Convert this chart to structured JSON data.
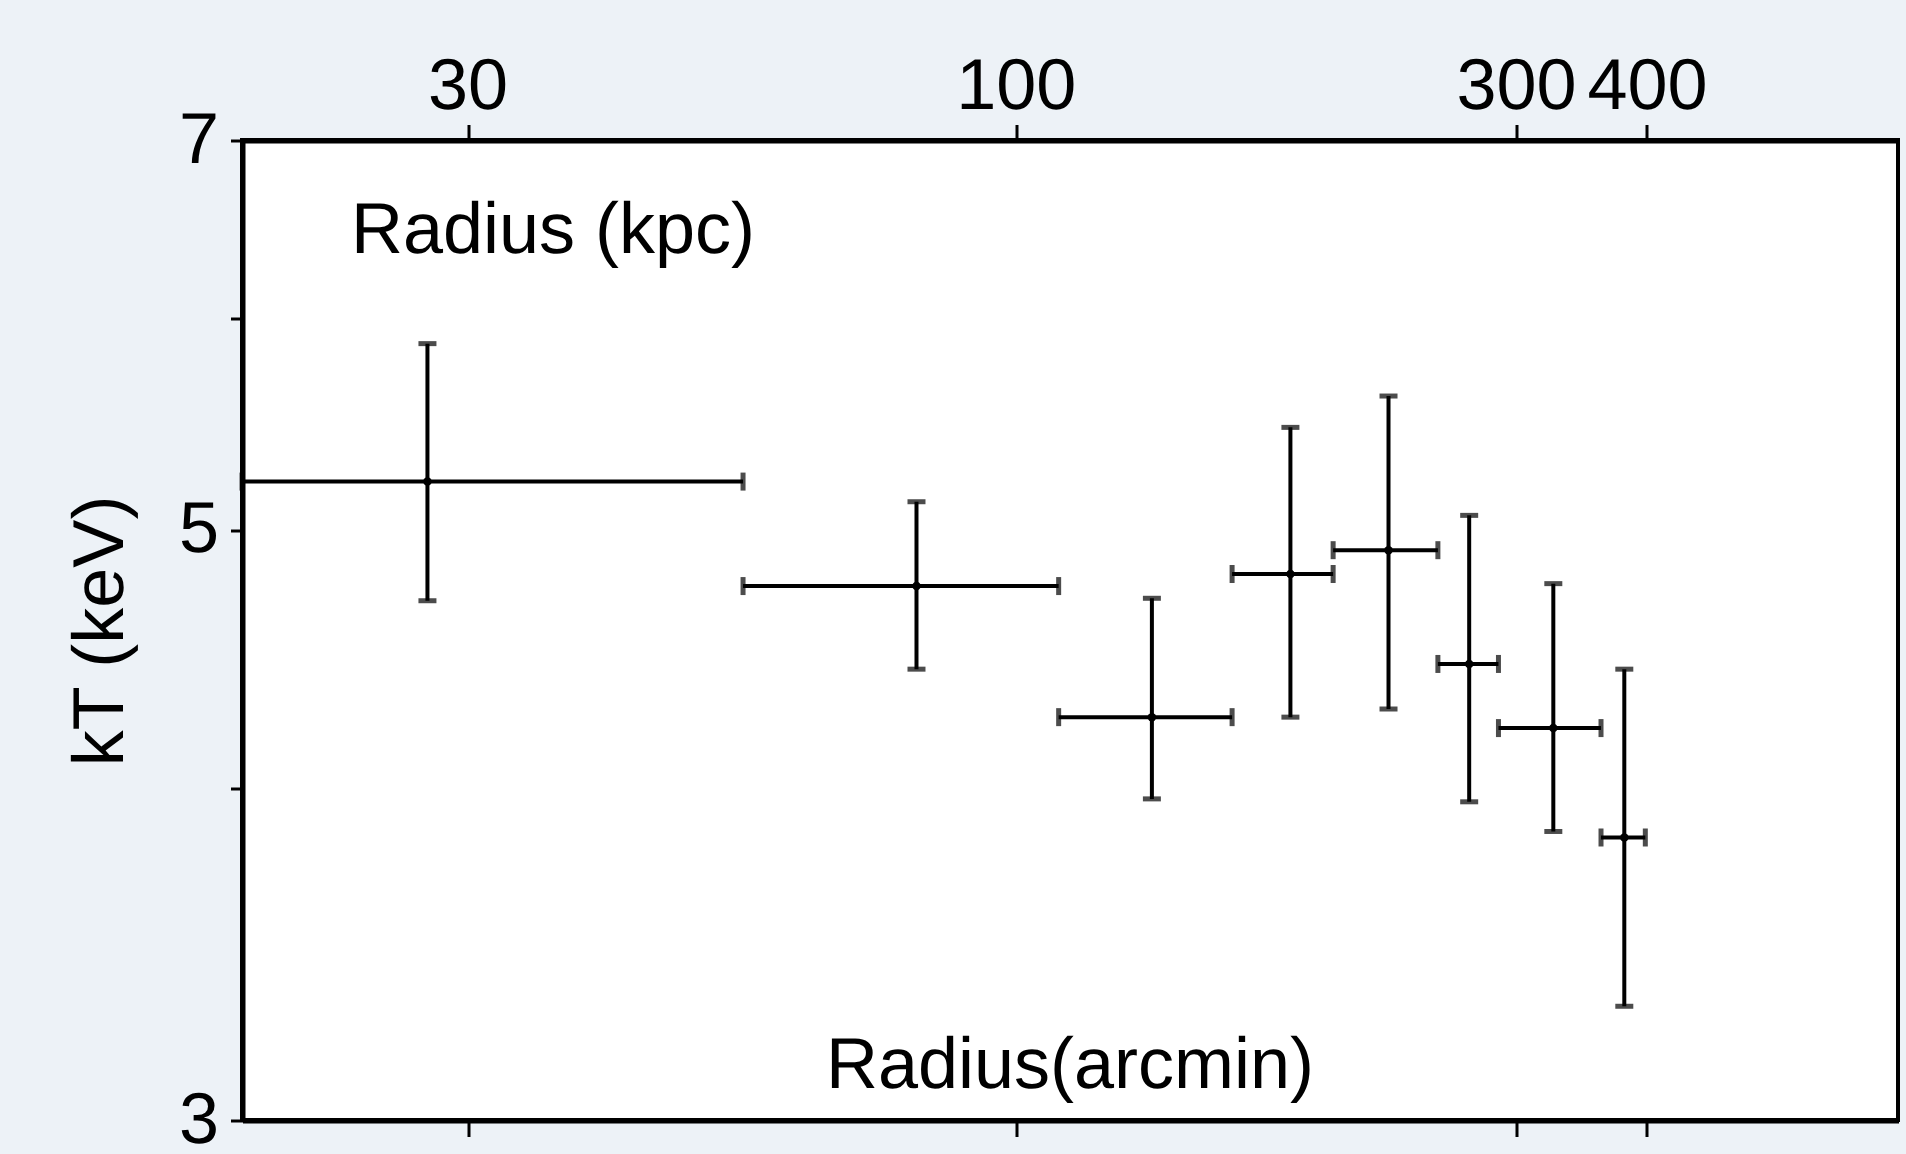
{
  "chart_data": {
    "type": "scatter",
    "xlabel": "Radius (kpc)",
    "ylabel": "kT (keV)",
    "annotations": [
      "Radius(arcmin)"
    ],
    "log": "xy",
    "marker": "circle",
    "grid": false,
    "xlim": [
      18.3,
      695
    ],
    "xticks": [
      30,
      100,
      300,
      400
    ],
    "ylim": [
      3,
      7
    ],
    "yticks": [
      3,
      {
        "value": 4,
        "label": null
      },
      5,
      {
        "value": 6,
        "label": null
      },
      7
    ],
    "series": [
      {
        "color": "#000000",
        "x": [
          27.5,
          80.5,
          135,
          183,
          227,
          271,
          326,
          381
        ],
        "values": [
          5.21,
          4.76,
          4.25,
          4.81,
          4.91,
          4.45,
          4.21,
          3.83
        ],
        "errors": [
          [
            4.7,
            5.87
          ],
          [
            4.43,
            5.12
          ],
          [
            3.96,
            4.71
          ],
          [
            4.25,
            5.46
          ],
          [
            4.28,
            5.61
          ],
          [
            3.95,
            5.06
          ],
          [
            3.85,
            4.77
          ],
          [
            3.31,
            4.43
          ]
        ],
        "xerrors": [
          [
            18.3,
            55
          ],
          [
            55,
            110
          ],
          [
            110,
            161
          ],
          [
            161,
            201
          ],
          [
            201,
            253
          ],
          [
            253,
            289
          ],
          [
            289,
            362
          ],
          [
            362,
            399
          ]
        ]
      }
    ]
  }
}
